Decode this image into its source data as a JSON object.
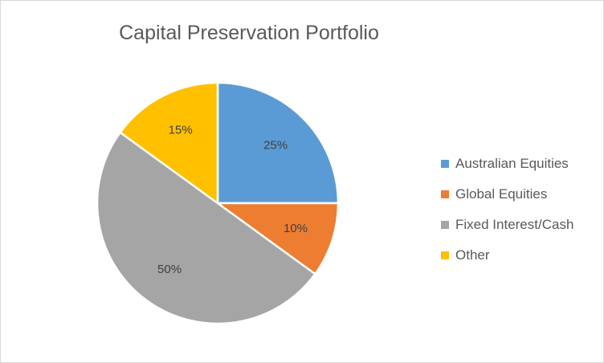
{
  "chart_data": {
    "type": "pie",
    "title": "Capital Preservation Portfolio",
    "categories": [
      "Australian Equities",
      "Global Equities",
      "Fixed Interest/Cash",
      "Other"
    ],
    "values": [
      25,
      10,
      50,
      15
    ],
    "labels": [
      "25%",
      "10%",
      "50%",
      "15%"
    ],
    "colors": [
      "#5B9BD5",
      "#ED7D31",
      "#A5A5A5",
      "#FFC000"
    ],
    "start_angle": "12 o'clock",
    "direction": "clockwise",
    "legend": "right"
  }
}
